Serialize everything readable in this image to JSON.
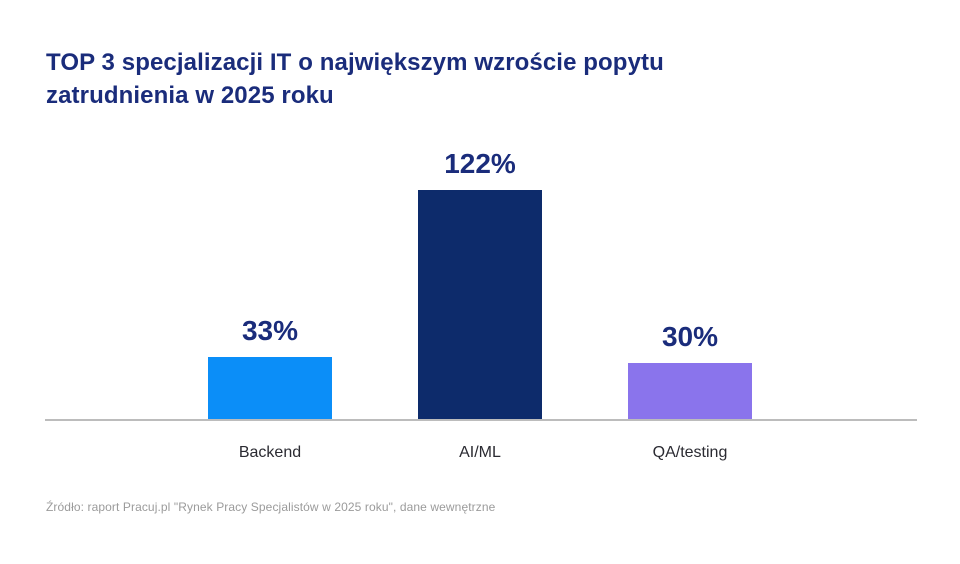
{
  "title": {
    "text": "TOP 3 specjalizacji IT o największym wzroście popytu\nzatrudnienia w 2025 roku"
  },
  "source": "Źródło: raport Pracuj.pl \"Rynek Pracy Specjalistów w 2025 roku\", dane wewnętrzne",
  "colors": {
    "background": "#ffffff",
    "title_navy": "#1a2c7b",
    "category_label": "#2a2a31",
    "source_gray": "#9b9b9b",
    "baseline_gray": "#bcbcbc"
  },
  "chart_data": {
    "type": "bar",
    "title": "TOP 3 specjalizacji IT o największym wzroście popytu zatrudnienia w 2025 roku",
    "categories": [
      "Backend",
      "AI/ML",
      "QA/testing"
    ],
    "values": [
      33,
      122,
      30
    ],
    "value_labels": [
      "33%",
      "122%",
      "30%"
    ],
    "bar_colors": [
      "#0b8ef8",
      "#0d2b6b",
      "#8a74ec"
    ],
    "xlabel": "",
    "ylabel": "",
    "ylim": [
      0,
      130
    ],
    "grid": false,
    "legend": "none",
    "annotations": "values shown as bold navy percentage labels above each bar"
  }
}
